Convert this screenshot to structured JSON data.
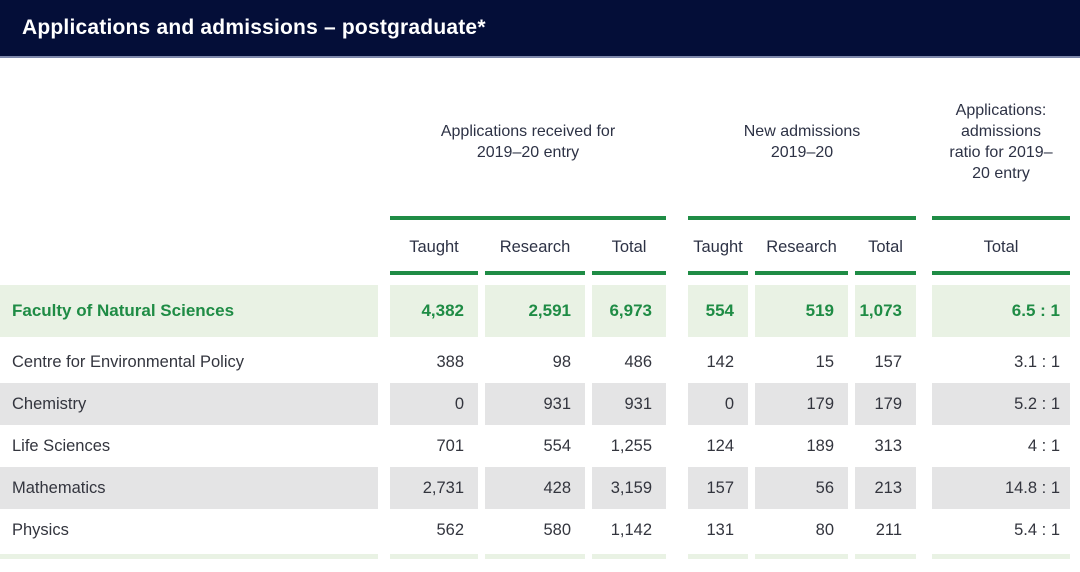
{
  "title_bar": {
    "title": "Applications and admissions – postgraduate*"
  },
  "colors": {
    "navy_header_bg": "#040e38",
    "title_text": "#ffffff",
    "header_bottom_rule": "#7e88ab",
    "accent_green": "#1f8c45",
    "highlight_row_bg": "#e9f2e4",
    "alt_row_bg": "#e4e4e5",
    "body_text": "#33353e",
    "header_text": "#2d3245"
  },
  "table": {
    "group_headers": [
      "Applications received for 2019–20 entry",
      "New admissions 2019–20",
      "Applications: admissions ratio for 2019–20 entry"
    ],
    "sub_headers": [
      "Taught",
      "Research",
      "Total",
      "Taught",
      "Research",
      "Total",
      "Total"
    ],
    "rows": [
      {
        "name": "Faculty of Natural Sciences",
        "values": [
          "4,382",
          "2,591",
          "6,973",
          "554",
          "519",
          "1,073",
          "6.5 : 1"
        ]
      },
      {
        "name": "Centre for Environmental Policy",
        "values": [
          "388",
          "98",
          "486",
          "142",
          "15",
          "157",
          "3.1 : 1"
        ]
      },
      {
        "name": "Chemistry",
        "values": [
          "0",
          "931",
          "931",
          "0",
          "179",
          "179",
          "5.2 : 1"
        ]
      },
      {
        "name": "Life Sciences",
        "values": [
          "701",
          "554",
          "1,255",
          "124",
          "189",
          "313",
          "4 : 1"
        ]
      },
      {
        "name": "Mathematics",
        "values": [
          "2,731",
          "428",
          "3,159",
          "157",
          "56",
          "213",
          "14.8 : 1"
        ]
      },
      {
        "name": "Physics",
        "values": [
          "562",
          "580",
          "1,142",
          "131",
          "80",
          "211",
          "5.4 : 1"
        ]
      }
    ]
  },
  "chart_data": {
    "type": "table",
    "title": "Applications and admissions – postgraduate*",
    "column_groups": [
      {
        "label": "Applications received for 2019–20 entry",
        "columns": [
          "Taught",
          "Research",
          "Total"
        ]
      },
      {
        "label": "New admissions 2019–20",
        "columns": [
          "Taught",
          "Research",
          "Total"
        ]
      },
      {
        "label": "Applications: admissions ratio for 2019–20 entry",
        "columns": [
          "Total"
        ]
      }
    ],
    "rows": [
      {
        "name": "Faculty of Natural Sciences",
        "highlight": true,
        "applications": {
          "taught": 4382,
          "research": 2591,
          "total": 6973
        },
        "admissions": {
          "taught": 554,
          "research": 519,
          "total": 1073
        },
        "ratio": "6.5 : 1"
      },
      {
        "name": "Centre for Environmental Policy",
        "highlight": false,
        "applications": {
          "taught": 388,
          "research": 98,
          "total": 486
        },
        "admissions": {
          "taught": 142,
          "research": 15,
          "total": 157
        },
        "ratio": "3.1 : 1"
      },
      {
        "name": "Chemistry",
        "highlight": false,
        "applications": {
          "taught": 0,
          "research": 931,
          "total": 931
        },
        "admissions": {
          "taught": 0,
          "research": 179,
          "total": 179
        },
        "ratio": "5.2 : 1"
      },
      {
        "name": "Life Sciences",
        "highlight": false,
        "applications": {
          "taught": 701,
          "research": 554,
          "total": 1255
        },
        "admissions": {
          "taught": 124,
          "research": 189,
          "total": 313
        },
        "ratio": "4 : 1"
      },
      {
        "name": "Mathematics",
        "highlight": false,
        "applications": {
          "taught": 2731,
          "research": 428,
          "total": 3159
        },
        "admissions": {
          "taught": 157,
          "research": 56,
          "total": 213
        },
        "ratio": "14.8 : 1"
      },
      {
        "name": "Physics",
        "highlight": false,
        "applications": {
          "taught": 562,
          "research": 580,
          "total": 1142
        },
        "admissions": {
          "taught": 131,
          "research": 80,
          "total": 211
        },
        "ratio": "5.4 : 1"
      }
    ]
  }
}
